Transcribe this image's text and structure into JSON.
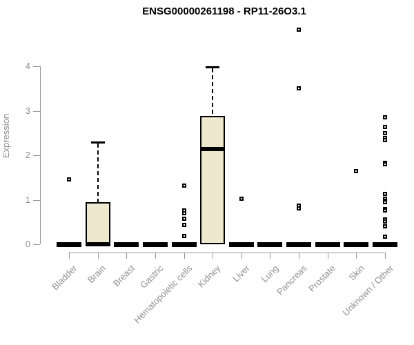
{
  "title": "ENSG00000261198 - RP11-26O3.1",
  "y_axis": {
    "label": "Expression",
    "tick_labels": [
      "0",
      "1",
      "2",
      "3",
      "4"
    ]
  },
  "colors": {
    "box_fill": "#ede8ce",
    "box_border": "#000000",
    "median": "#000000",
    "outlier": "#000000",
    "axis_line": "#969696",
    "axis_text": "#8f8f8f",
    "title_text": "#000000",
    "background": "#ffffff"
  },
  "chart_data": {
    "type": "boxplot",
    "title": "ENSG00000261198 - RP11-26O3.1",
    "xlabel": "",
    "ylabel": "Expression",
    "ylim": [
      0,
      4
    ],
    "y_ticks": [
      0,
      1,
      2,
      3,
      4
    ],
    "grid": false,
    "legend": false,
    "categories": [
      "Bladder",
      "Brain",
      "Breast",
      "Gastric",
      "Hematopoietic cells",
      "Kidney",
      "Liver",
      "Lung",
      "Pancreas",
      "Prostate",
      "Skin",
      "Unknown / Other"
    ],
    "boxes": [
      {
        "category": "Bladder",
        "q1": 0,
        "median": 0,
        "q3": 0,
        "whisker_low": 0,
        "whisker_high": 0,
        "outliers": [
          1.45
        ]
      },
      {
        "category": "Brain",
        "q1": 0,
        "median": 0,
        "q3": 0.95,
        "whisker_low": 0,
        "whisker_high": 2.3,
        "outliers": []
      },
      {
        "category": "Breast",
        "q1": 0,
        "median": 0,
        "q3": 0,
        "whisker_low": 0,
        "whisker_high": 0,
        "outliers": []
      },
      {
        "category": "Gastric",
        "q1": 0,
        "median": 0,
        "q3": 0,
        "whisker_low": 0,
        "whisker_high": 0,
        "outliers": []
      },
      {
        "category": "Hematopoietic cells",
        "q1": 0,
        "median": 0,
        "q3": 0,
        "whisker_low": 0,
        "whisker_high": 0,
        "outliers": [
          1.32,
          0.76,
          0.7,
          0.58,
          0.43,
          0.19
        ]
      },
      {
        "category": "Kidney",
        "q1": 0,
        "median": 2.14,
        "q3": 2.88,
        "whisker_low": 0,
        "whisker_high": 3.98,
        "outliers": []
      },
      {
        "category": "Liver",
        "q1": 0,
        "median": 0,
        "q3": 0,
        "whisker_low": 0,
        "whisker_high": 0,
        "outliers": [
          1.02
        ]
      },
      {
        "category": "Lung",
        "q1": 0,
        "median": 0,
        "q3": 0,
        "whisker_low": 0,
        "whisker_high": 0,
        "outliers": []
      },
      {
        "category": "Pancreas",
        "q1": 0,
        "median": 0,
        "q3": 0,
        "whisker_low": 0,
        "whisker_high": 0,
        "outliers": [
          4.82,
          3.5,
          0.87,
          0.81
        ]
      },
      {
        "category": "Prostate",
        "q1": 0,
        "median": 0,
        "q3": 0,
        "whisker_low": 0,
        "whisker_high": 0,
        "outliers": []
      },
      {
        "category": "Skin",
        "q1": 0,
        "median": 0,
        "q3": 0,
        "whisker_low": 0,
        "whisker_high": 0,
        "outliers": [
          1.64
        ]
      },
      {
        "category": "Unknown / Other",
        "q1": 0,
        "median": 0,
        "q3": 0,
        "whisker_low": 0,
        "whisker_high": 0,
        "outliers": [
          2.85,
          2.64,
          2.5,
          2.38,
          2.34,
          1.83,
          1.8,
          1.13,
          1.03,
          0.98,
          0.94,
          0.79,
          0.76,
          0.56,
          0.51,
          0.4,
          0.17
        ]
      }
    ]
  }
}
